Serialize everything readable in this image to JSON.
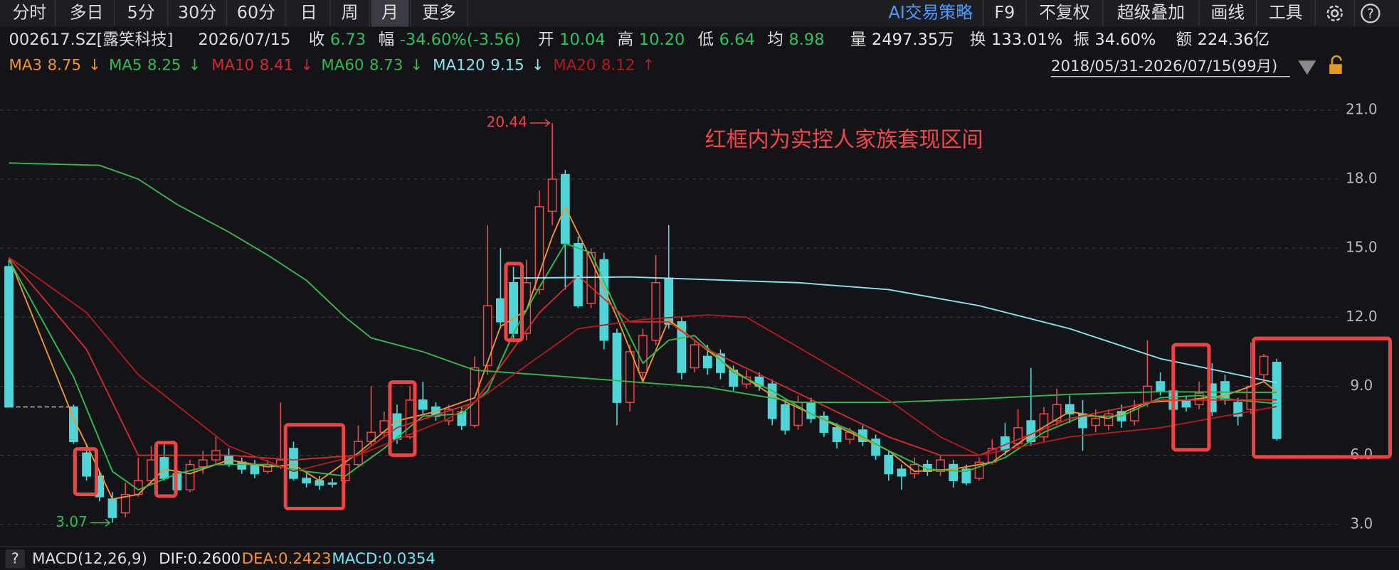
{
  "toolbar": {
    "left": [
      "分时",
      "多日",
      "5分",
      "30分",
      "60分",
      "日",
      "周",
      "月",
      "更多"
    ],
    "right": [
      "AI交易策略",
      "F9",
      "不复权",
      "超级叠加",
      "画线",
      "工具"
    ],
    "help": "?"
  },
  "quote": {
    "code": "002617.SZ[露笑科技]",
    "date": "2026/07/15",
    "items": [
      {
        "label": "收",
        "value": "6.73",
        "color": "#2fc25b"
      },
      {
        "label": "幅",
        "value": "-34.60%(-3.56)",
        "color": "#2fc25b"
      },
      {
        "label": "开",
        "value": "10.04",
        "color": "#2fc25b"
      },
      {
        "label": "高",
        "value": "10.20",
        "color": "#2fc25b"
      },
      {
        "label": "低",
        "value": "6.64",
        "color": "#2fc25b"
      },
      {
        "label": "均",
        "value": "8.98",
        "color": "#2fc25b"
      },
      {
        "label": "量",
        "value": "2497.35万",
        "color": "#e6e6e6"
      },
      {
        "label": "换",
        "value": "133.01%",
        "color": "#e6e6e6"
      },
      {
        "label": "振",
        "value": "34.60%",
        "color": "#e6e6e6"
      },
      {
        "label": "额",
        "value": "224.36亿",
        "color": "#e6e6e6"
      }
    ],
    "range": "2018/05/31-2026/07/15(99月)"
  },
  "chart_data": {
    "type": "candlestick",
    "annotation": "红框内为实控人家族套现区间",
    "up_color": "#ec4747",
    "down_color": "#4fd5d8",
    "high_mark": 20.44,
    "low_mark": 3.07,
    "open": [
      14.2,
      null,
      null,
      null,
      null,
      8.1,
      6.1,
      5.1,
      4.1,
      3.5,
      4.3,
      4.9,
      5.9,
      5.2,
      4.5,
      5.5,
      5.8,
      6.0,
      5.7,
      5.6,
      5.3,
      5.5,
      6.3,
      5.0,
      4.9,
      4.8,
      4.9,
      5.6,
      6.6,
      7.0,
      7.8,
      6.8,
      8.4,
      8.1,
      7.5,
      7.9,
      7.3,
      9.9,
      12.8,
      13.5,
      11.3,
      13.2,
      16.6,
      18.2,
      15.2,
      12.6,
      14.5,
      11.3,
      8.3,
      9.6,
      11.0,
      13.7,
      11.8,
      9.8,
      10.3,
      10.4,
      9.7,
      9.1,
      9.4,
      9.1,
      8.2,
      7.3,
      8.3,
      7.7,
      7.2,
      6.7,
      7.1,
      6.7,
      6.0,
      5.4,
      5.2,
      5.6,
      5.3,
      5.6,
      5.4,
      5.0,
      5.7,
      6.8,
      6.5,
      7.5,
      6.8,
      7.5,
      8.2,
      7.8,
      7.3,
      7.3,
      7.9,
      7.5,
      8.3,
      9.2,
      8.8,
      8.4,
      8.2,
      9.1,
      9.2,
      8.3,
      8.0,
      9.5,
      10.04
    ],
    "high": [
      14.5,
      null,
      null,
      null,
      null,
      8.2,
      6.5,
      5.3,
      4.4,
      4.8,
      5.9,
      6.4,
      6.6,
      5.4,
      5.8,
      6.2,
      6.8,
      6.3,
      5.9,
      5.8,
      5.8,
      8.3,
      6.6,
      5.2,
      5.1,
      5.0,
      5.8,
      7.3,
      9.0,
      7.9,
      8.2,
      9.0,
      9.2,
      8.3,
      8.2,
      8.1,
      10.3,
      16.0,
      15.0,
      14.2,
      14.5,
      17.5,
      20.44,
      18.4,
      15.5,
      15.0,
      14.8,
      11.5,
      10.8,
      11.5,
      14.7,
      16.0,
      12.0,
      11.0,
      10.8,
      10.6,
      9.9,
      9.7,
      9.6,
      9.3,
      8.3,
      8.6,
      8.5,
      7.9,
      7.4,
      7.2,
      7.3,
      6.9,
      6.2,
      5.6,
      5.9,
      5.8,
      6.0,
      5.8,
      5.6,
      5.9,
      6.7,
      7.4,
      8.0,
      9.8,
      8.1,
      8.9,
      8.6,
      8.4,
      8.0,
      8.0,
      8.2,
      8.4,
      11.0,
      9.6,
      9.0,
      8.6,
      9.2,
      10.0,
      9.5,
      8.5,
      10.9,
      10.4,
      10.2
    ],
    "low": [
      8.1,
      null,
      null,
      null,
      null,
      6.5,
      4.9,
      4.0,
      3.07,
      3.3,
      4.2,
      4.7,
      4.9,
      4.4,
      4.4,
      5.2,
      5.6,
      5.5,
      5.2,
      5.0,
      5.2,
      5.4,
      4.9,
      4.6,
      4.5,
      4.6,
      4.8,
      5.5,
      6.4,
      6.8,
      6.5,
      6.7,
      7.8,
      7.5,
      7.3,
      7.1,
      7.2,
      9.5,
      11.5,
      11.0,
      11.0,
      13.0,
      16.0,
      13.2,
      12.4,
      12.4,
      10.6,
      7.3,
      7.9,
      9.3,
      10.8,
      11.5,
      9.3,
      9.6,
      9.5,
      9.3,
      8.8,
      8.9,
      8.8,
      7.3,
      6.9,
      7.1,
      7.4,
      6.8,
      6.3,
      6.5,
      6.4,
      5.8,
      4.9,
      4.5,
      5.0,
      5.1,
      5.1,
      4.6,
      4.7,
      4.9,
      5.6,
      6.0,
      6.4,
      6.4,
      6.6,
      7.3,
      7.4,
      6.2,
      7.0,
      7.1,
      7.2,
      7.3,
      8.1,
      8.6,
      7.8,
      7.9,
      8.0,
      7.7,
      8.2,
      7.3,
      7.8,
      9.3,
      6.64
    ],
    "close": [
      8.1,
      null,
      null,
      null,
      null,
      6.6,
      5.1,
      4.2,
      3.3,
      4.3,
      4.9,
      5.8,
      5.0,
      4.5,
      5.6,
      5.8,
      6.2,
      5.6,
      5.4,
      5.2,
      5.6,
      5.8,
      5.0,
      4.8,
      4.7,
      4.75,
      5.6,
      6.6,
      7.0,
      7.5,
      6.7,
      8.4,
      8.0,
      7.7,
      8.0,
      7.3,
      9.8,
      12.5,
      11.8,
      11.3,
      13.5,
      16.8,
      18.0,
      15.2,
      12.5,
      14.8,
      11.0,
      8.3,
      10.5,
      11.2,
      13.5,
      11.7,
      9.6,
      10.8,
      9.8,
      9.6,
      9.0,
      9.4,
      9.0,
      7.6,
      7.1,
      8.3,
      7.6,
      7.0,
      6.6,
      7.0,
      6.6,
      6.0,
      5.2,
      5.1,
      5.6,
      5.3,
      5.8,
      4.9,
      4.8,
      5.7,
      6.3,
      6.2,
      7.2,
      6.6,
      7.8,
      8.2,
      7.8,
      7.2,
      7.6,
      7.8,
      7.5,
      8.0,
      9.0,
      8.8,
      8.0,
      8.1,
      8.7,
      7.9,
      8.4,
      7.7,
      9.0,
      10.3,
      6.73
    ],
    "series": [
      {
        "name": "MA3",
        "last_label": "8.75",
        "trend": "↓",
        "color": "#f39230",
        "x": [
          0,
          5,
          7,
          8,
          10,
          12,
          14,
          17,
          20,
          22,
          24,
          27,
          30,
          33,
          36,
          38,
          40,
          42,
          43,
          45,
          47,
          49,
          51,
          53,
          56,
          59,
          62,
          65,
          68,
          70,
          73,
          76,
          79,
          82,
          85,
          88,
          91,
          94,
          97,
          98
        ],
        "values": [
          14.6,
          7.6,
          5.3,
          4.1,
          4.3,
          5.4,
          5.2,
          5.8,
          5.5,
          5.6,
          4.9,
          6.1,
          7.5,
          7.9,
          8.5,
          11.6,
          12.3,
          15.5,
          16.8,
          14.5,
          12.0,
          9.2,
          11.9,
          11.0,
          9.7,
          8.6,
          7.8,
          7.0,
          6.2,
          5.3,
          5.4,
          5.7,
          6.9,
          7.9,
          7.6,
          8.3,
          8.4,
          8.6,
          9.2,
          8.75
        ]
      },
      {
        "name": "MA5",
        "last_label": "8.25",
        "trend": "↓",
        "color": "#2fbf4f",
        "x": [
          0,
          5,
          8,
          10,
          13,
          16,
          20,
          23,
          26,
          29,
          32,
          35,
          37,
          39,
          41,
          43,
          45,
          47,
          49,
          51,
          53,
          56,
          59,
          62,
          65,
          68,
          71,
          74,
          77,
          80,
          83,
          86,
          89,
          92,
          95,
          98
        ],
        "values": [
          14.5,
          9.4,
          5.3,
          4.5,
          5.2,
          5.6,
          5.6,
          5.3,
          5.1,
          6.3,
          7.7,
          7.8,
          8.8,
          11.3,
          13.3,
          15.2,
          14.8,
          12.3,
          10.0,
          11.0,
          11.2,
          9.6,
          8.8,
          7.8,
          7.1,
          6.2,
          5.4,
          5.3,
          5.9,
          7.0,
          7.7,
          7.7,
          8.5,
          8.6,
          8.4,
          8.25
        ]
      },
      {
        "name": "MA10",
        "last_label": "8.41",
        "trend": "↓",
        "color": "#d42a2a",
        "x": [
          0,
          6,
          10,
          17,
          22,
          27,
          30,
          36,
          41,
          44,
          48,
          51,
          54,
          61,
          68,
          72,
          75,
          82,
          89,
          98
        ],
        "values": [
          14.6,
          10.6,
          6.0,
          6.0,
          5.8,
          6.0,
          7.2,
          8.3,
          12.2,
          13.8,
          11.8,
          11.8,
          10.6,
          8.7,
          6.8,
          6.0,
          6.0,
          7.6,
          8.4,
          8.41
        ]
      },
      {
        "name": "MA60",
        "last_label": "8.73",
        "trend": "↓",
        "color": "#35b84a",
        "x": [
          0,
          7,
          10,
          13,
          17,
          20,
          23,
          26,
          28,
          32,
          36,
          41,
          48,
          54,
          61,
          68,
          75,
          82,
          89,
          98
        ],
        "values": [
          18.7,
          18.6,
          18.0,
          16.9,
          15.7,
          14.7,
          13.6,
          12.0,
          11.1,
          10.5,
          9.7,
          9.5,
          9.2,
          8.95,
          8.3,
          8.3,
          8.45,
          8.65,
          8.76,
          8.73
        ]
      },
      {
        "name": "MA120",
        "last_label": "9.15",
        "trend": "↓",
        "color": "#86e6f0",
        "x": [
          39,
          48,
          61,
          68,
          75,
          82,
          89,
          98
        ],
        "values": [
          13.7,
          13.75,
          13.5,
          13.2,
          12.5,
          11.5,
          10.2,
          9.15
        ]
      },
      {
        "name": "MA20",
        "last_label": "8.12",
        "trend": "↑",
        "color": "#b31b1b",
        "x": [
          0,
          6,
          10,
          17,
          22,
          27,
          34,
          37,
          41,
          44,
          49,
          54,
          57,
          61,
          68,
          72,
          75,
          82,
          89,
          98
        ],
        "values": [
          14.6,
          12.2,
          9.5,
          6.4,
          5.3,
          6.0,
          7.6,
          8.7,
          10.3,
          11.5,
          11.9,
          12.1,
          12.0,
          10.7,
          8.4,
          6.8,
          6.0,
          6.8,
          7.2,
          8.12
        ]
      }
    ],
    "ylim": [
      2.1,
      22.3
    ],
    "yticks": [
      {
        "value": 3,
        "label": "3.0"
      },
      {
        "value": 6,
        "label": "6.0"
      },
      {
        "value": 9,
        "label": "9.0"
      },
      {
        "value": 12,
        "label": "12.0"
      },
      {
        "value": 15,
        "label": "15.0"
      },
      {
        "value": 18,
        "label": "18.0"
      },
      {
        "value": 21,
        "label": "21.0"
      }
    ],
    "grid": true
  },
  "macd": {
    "help": "?",
    "title": "MACD(12,26,9)",
    "items": [
      {
        "text": "DIF:0.2600",
        "color": "#e6e6e6"
      },
      {
        "text": "DEA:0.2423",
        "color": "#f39230"
      },
      {
        "text": "MACD:0.0354",
        "color": "#6fe4f0"
      }
    ]
  }
}
